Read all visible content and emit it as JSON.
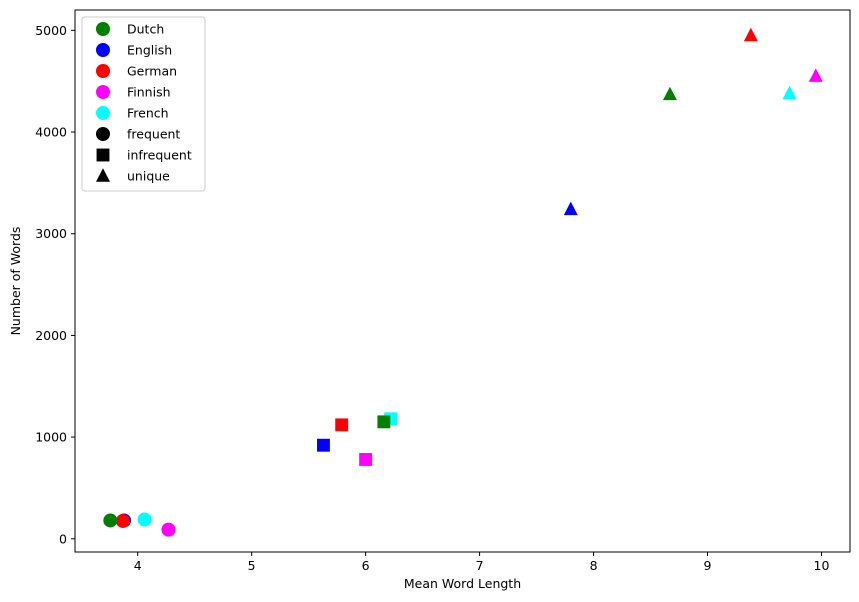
{
  "chart_data": {
    "type": "scatter",
    "title": "",
    "xlabel": "Mean Word Length",
    "ylabel": "Number of Words",
    "xlim": [
      3.45,
      10.25
    ],
    "ylim": [
      -130,
      5200
    ],
    "xticks": [
      4,
      5,
      6,
      7,
      8,
      9,
      10
    ],
    "yticks": [
      0,
      1000,
      2000,
      3000,
      4000,
      5000
    ],
    "grid": false,
    "legend_position": "top-left",
    "languages": [
      {
        "name": "Dutch",
        "color": "#008000"
      },
      {
        "name": "English",
        "color": "#0000ff"
      },
      {
        "name": "German",
        "color": "#ff0000"
      },
      {
        "name": "Finnish",
        "color": "#ff00ff"
      },
      {
        "name": "French",
        "color": "#00ffff"
      }
    ],
    "categories": [
      {
        "name": "frequent",
        "marker": "circle"
      },
      {
        "name": "infrequent",
        "marker": "square"
      },
      {
        "name": "unique",
        "marker": "triangle"
      }
    ],
    "points": [
      {
        "language": "English",
        "category": "frequent",
        "x": 3.88,
        "y": 180
      },
      {
        "language": "German",
        "category": "frequent",
        "x": 3.87,
        "y": 175
      },
      {
        "language": "Dutch",
        "category": "frequent",
        "x": 3.76,
        "y": 180
      },
      {
        "language": "French",
        "category": "frequent",
        "x": 4.06,
        "y": 190
      },
      {
        "language": "Finnish",
        "category": "frequent",
        "x": 4.27,
        "y": 90
      },
      {
        "language": "English",
        "category": "infrequent",
        "x": 5.63,
        "y": 920
      },
      {
        "language": "German",
        "category": "infrequent",
        "x": 5.79,
        "y": 1120
      },
      {
        "language": "Finnish",
        "category": "infrequent",
        "x": 6.0,
        "y": 780
      },
      {
        "language": "French",
        "category": "infrequent",
        "x": 6.22,
        "y": 1180
      },
      {
        "language": "Dutch",
        "category": "infrequent",
        "x": 6.16,
        "y": 1150
      },
      {
        "language": "English",
        "category": "unique",
        "x": 7.8,
        "y": 3240
      },
      {
        "language": "Dutch",
        "category": "unique",
        "x": 8.67,
        "y": 4370
      },
      {
        "language": "German",
        "category": "unique",
        "x": 9.38,
        "y": 4950
      },
      {
        "language": "French",
        "category": "unique",
        "x": 9.72,
        "y": 4380
      },
      {
        "language": "Finnish",
        "category": "unique",
        "x": 9.95,
        "y": 4550
      }
    ]
  }
}
